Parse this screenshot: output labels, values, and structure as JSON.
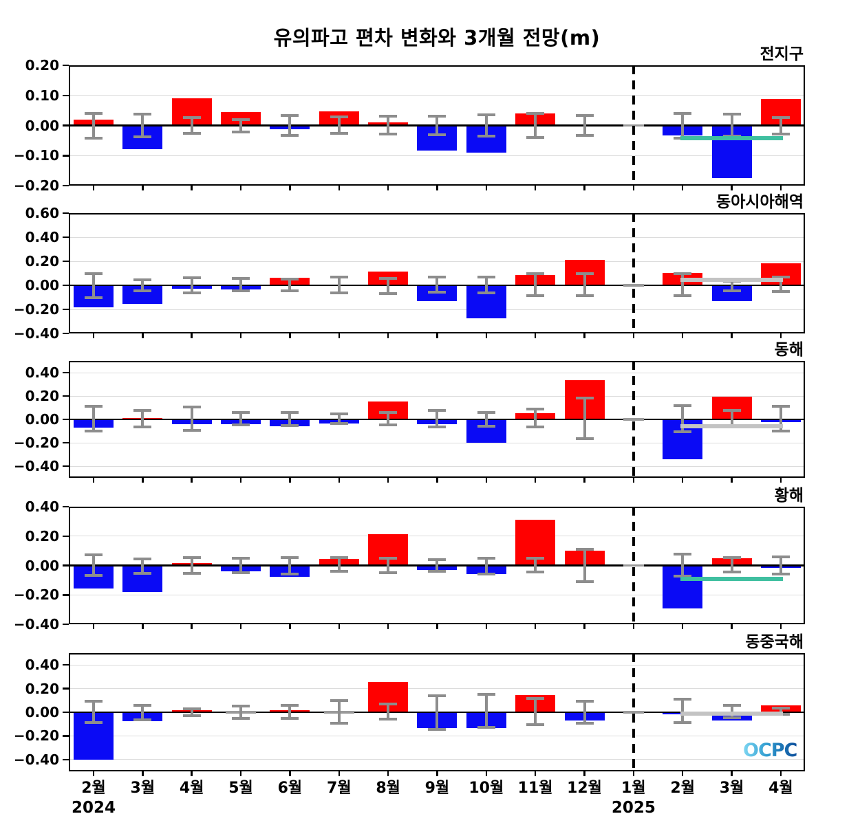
{
  "title": "유의파고 편차 변화와 3개월 전망(m)",
  "logo_text": "OCPC",
  "x_axis": {
    "months": [
      "2월",
      "3월",
      "4월",
      "5월",
      "6월",
      "7월",
      "8월",
      "9월",
      "10월",
      "11월",
      "12월",
      "1월",
      "2월",
      "3월",
      "4월"
    ],
    "year_left": "2024",
    "year_right": "2025",
    "year_left_month_index": 0,
    "year_right_month_index": 11,
    "divider_month_index": 11,
    "forecast_month_indices": [
      12,
      13,
      14
    ]
  },
  "colors": {
    "positive_bar": "#ff0000",
    "negative_bar": "#0a0af5",
    "error_bar": "#8d8d8d",
    "zero_marker": "#9a9a9a",
    "ref_line_teal": "#3fbfa0",
    "ref_line_gray": "#c3c3c3",
    "gridline": "#dcdcdc",
    "axis": "#000000"
  },
  "chart_data": [
    {
      "type": "bar",
      "region": "전지구",
      "ylim": [
        -0.2,
        0.2
      ],
      "yticks": [
        0.2,
        0.1,
        0.0,
        -0.1,
        -0.2
      ],
      "values": [
        0.02,
        -0.078,
        0.091,
        0.045,
        -0.013,
        0.047,
        0.01,
        -0.083,
        -0.091,
        0.04,
        0.004,
        0.0,
        -0.033,
        -0.175,
        0.088
      ],
      "err_hi": [
        0.04,
        0.037,
        0.027,
        0.02,
        0.033,
        0.028,
        0.031,
        0.03,
        0.036,
        0.04,
        0.034,
        null,
        0.041,
        0.038,
        0.027
      ],
      "err_lo": [
        -0.042,
        -0.037,
        -0.027,
        -0.022,
        -0.034,
        -0.027,
        -0.029,
        -0.03,
        -0.036,
        -0.04,
        -0.034,
        null,
        -0.043,
        -0.035,
        -0.029
      ],
      "forecast_ref_line": {
        "value": -0.043,
        "color": "teal"
      }
    },
    {
      "type": "bar",
      "region": "동아시아해역",
      "ylim": [
        -0.4,
        0.6
      ],
      "yticks": [
        0.6,
        0.4,
        0.2,
        0.0,
        -0.2,
        -0.4
      ],
      "values": [
        -0.18,
        -0.155,
        -0.028,
        -0.034,
        0.063,
        -0.005,
        0.114,
        -0.133,
        -0.276,
        0.086,
        0.21,
        0.0,
        0.103,
        -0.132,
        0.181
      ],
      "err_hi": [
        0.1,
        0.044,
        0.063,
        0.057,
        0.05,
        0.07,
        0.057,
        0.067,
        0.07,
        0.1,
        0.095,
        null,
        0.097,
        0.035,
        0.068
      ],
      "err_lo": [
        -0.1,
        -0.044,
        -0.063,
        -0.048,
        -0.048,
        -0.063,
        -0.07,
        -0.057,
        -0.063,
        -0.086,
        -0.086,
        null,
        -0.087,
        -0.045,
        -0.049
      ],
      "forecast_ref_line": {
        "value": 0.045,
        "color": "gray"
      }
    },
    {
      "type": "bar",
      "region": "동해",
      "ylim": [
        -0.5,
        0.5
      ],
      "yticks": [
        0.4,
        0.2,
        0.0,
        -0.2,
        -0.4
      ],
      "values": [
        -0.069,
        0.01,
        -0.041,
        -0.041,
        -0.056,
        -0.036,
        0.155,
        -0.041,
        -0.2,
        0.052,
        0.333,
        0.0,
        -0.34,
        0.196,
        -0.025
      ],
      "err_hi": [
        0.114,
        0.077,
        0.105,
        0.058,
        0.058,
        0.049,
        0.058,
        0.077,
        0.062,
        0.086,
        0.183,
        null,
        0.118,
        0.075,
        0.112
      ],
      "err_lo": [
        -0.097,
        -0.064,
        -0.092,
        -0.047,
        -0.05,
        -0.037,
        -0.047,
        -0.064,
        -0.06,
        -0.064,
        -0.163,
        null,
        -0.108,
        -0.06,
        -0.102
      ],
      "forecast_ref_line": {
        "value": -0.059,
        "color": "gray"
      }
    },
    {
      "type": "bar",
      "region": "황해",
      "ylim": [
        -0.4,
        0.4
      ],
      "yticks": [
        0.4,
        0.2,
        0.0,
        -0.2,
        -0.4
      ],
      "values": [
        -0.156,
        -0.179,
        0.015,
        -0.041,
        -0.079,
        0.046,
        0.211,
        -0.031,
        -0.058,
        0.311,
        0.103,
        0.0,
        -0.292,
        0.049,
        -0.018
      ],
      "err_hi": [
        0.073,
        0.046,
        0.053,
        0.05,
        0.053,
        0.053,
        0.05,
        0.038,
        0.049,
        0.049,
        0.111,
        null,
        0.077,
        0.054,
        0.057
      ],
      "err_lo": [
        -0.069,
        -0.052,
        -0.052,
        -0.05,
        -0.056,
        -0.041,
        -0.049,
        -0.041,
        -0.058,
        -0.046,
        -0.108,
        null,
        -0.074,
        -0.046,
        -0.057
      ],
      "forecast_ref_line": {
        "value": -0.092,
        "color": "teal"
      }
    },
    {
      "type": "bar",
      "region": "동중국해",
      "ylim": [
        -0.5,
        0.5
      ],
      "yticks": [
        0.4,
        0.2,
        0.0,
        -0.2,
        -0.4
      ],
      "values": [
        -0.4,
        -0.076,
        0.015,
        0.0,
        0.015,
        0.0,
        0.257,
        -0.135,
        -0.133,
        0.143,
        -0.067,
        0.0,
        -0.019,
        -0.067,
        0.061
      ],
      "err_hi": [
        0.091,
        0.061,
        0.03,
        0.051,
        0.057,
        0.099,
        0.072,
        0.139,
        0.149,
        0.114,
        0.095,
        null,
        0.109,
        0.061,
        0.034
      ],
      "err_lo": [
        -0.086,
        -0.061,
        -0.029,
        -0.051,
        -0.051,
        -0.095,
        -0.057,
        -0.143,
        -0.13,
        -0.105,
        -0.091,
        null,
        -0.086,
        -0.048,
        -0.019
      ],
      "forecast_ref_line": {
        "value": -0.01,
        "color": "gray"
      }
    }
  ]
}
